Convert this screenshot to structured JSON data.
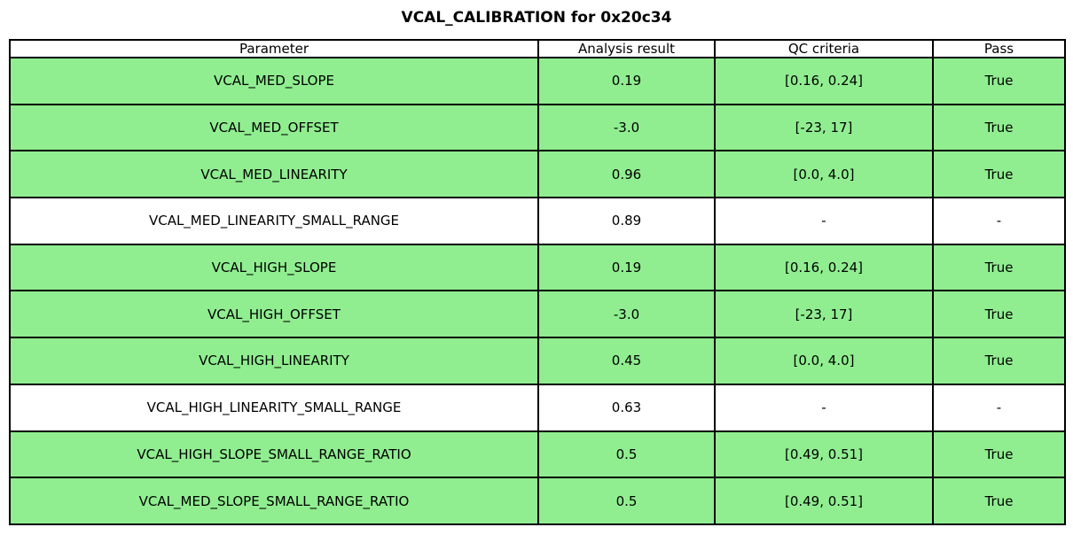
{
  "title": "VCAL_CALIBRATION for 0x20c34",
  "colors": {
    "pass_row_background": "#90EE90",
    "neutral_row_background": "#FFFFFF",
    "border": "#000000",
    "text": "#000000"
  },
  "table": {
    "headers": [
      "Parameter",
      "Analysis result",
      "QC criteria",
      "Pass"
    ],
    "rows": [
      {
        "parameter": "VCAL_MED_SLOPE",
        "result": "0.19",
        "qc": "[0.16, 0.24]",
        "pass": "True",
        "highlight": true
      },
      {
        "parameter": "VCAL_MED_OFFSET",
        "result": "-3.0",
        "qc": "[-23, 17]",
        "pass": "True",
        "highlight": true
      },
      {
        "parameter": "VCAL_MED_LINEARITY",
        "result": "0.96",
        "qc": "[0.0, 4.0]",
        "pass": "True",
        "highlight": true
      },
      {
        "parameter": "VCAL_MED_LINEARITY_SMALL_RANGE",
        "result": "0.89",
        "qc": "-",
        "pass": "-",
        "highlight": false
      },
      {
        "parameter": "VCAL_HIGH_SLOPE",
        "result": "0.19",
        "qc": "[0.16, 0.24]",
        "pass": "True",
        "highlight": true
      },
      {
        "parameter": "VCAL_HIGH_OFFSET",
        "result": "-3.0",
        "qc": "[-23, 17]",
        "pass": "True",
        "highlight": true
      },
      {
        "parameter": "VCAL_HIGH_LINEARITY",
        "result": "0.45",
        "qc": "[0.0, 4.0]",
        "pass": "True",
        "highlight": true
      },
      {
        "parameter": "VCAL_HIGH_LINEARITY_SMALL_RANGE",
        "result": "0.63",
        "qc": "-",
        "pass": "-",
        "highlight": false
      },
      {
        "parameter": "VCAL_HIGH_SLOPE_SMALL_RANGE_RATIO",
        "result": "0.5",
        "qc": "[0.49, 0.51]",
        "pass": "True",
        "highlight": true
      },
      {
        "parameter": "VCAL_MED_SLOPE_SMALL_RANGE_RATIO",
        "result": "0.5",
        "qc": "[0.49, 0.51]",
        "pass": "True",
        "highlight": true
      }
    ]
  },
  "chart_data": {
    "type": "table",
    "title": "VCAL_CALIBRATION for 0x20c34",
    "columns": [
      "Parameter",
      "Analysis result",
      "QC criteria",
      "Pass"
    ],
    "rows": [
      [
        "VCAL_MED_SLOPE",
        "0.19",
        "[0.16, 0.24]",
        "True"
      ],
      [
        "VCAL_MED_OFFSET",
        "-3.0",
        "[-23, 17]",
        "True"
      ],
      [
        "VCAL_MED_LINEARITY",
        "0.96",
        "[0.0, 4.0]",
        "True"
      ],
      [
        "VCAL_MED_LINEARITY_SMALL_RANGE",
        "0.89",
        "-",
        "-"
      ],
      [
        "VCAL_HIGH_SLOPE",
        "0.19",
        "[0.16, 0.24]",
        "True"
      ],
      [
        "VCAL_HIGH_OFFSET",
        "-3.0",
        "[-23, 17]",
        "True"
      ],
      [
        "VCAL_HIGH_LINEARITY",
        "0.45",
        "[0.0, 4.0]",
        "True"
      ],
      [
        "VCAL_HIGH_LINEARITY_SMALL_RANGE",
        "0.63",
        "-",
        "-"
      ],
      [
        "VCAL_HIGH_SLOPE_SMALL_RANGE_RATIO",
        "0.5",
        "[0.49, 0.51]",
        "True"
      ],
      [
        "VCAL_MED_SLOPE_SMALL_RANGE_RATIO",
        "0.5",
        "[0.49, 0.51]",
        "True"
      ]
    ],
    "row_highlight_color": "#90EE90",
    "highlighted_rows": [
      0,
      1,
      2,
      4,
      5,
      6,
      8,
      9
    ]
  }
}
